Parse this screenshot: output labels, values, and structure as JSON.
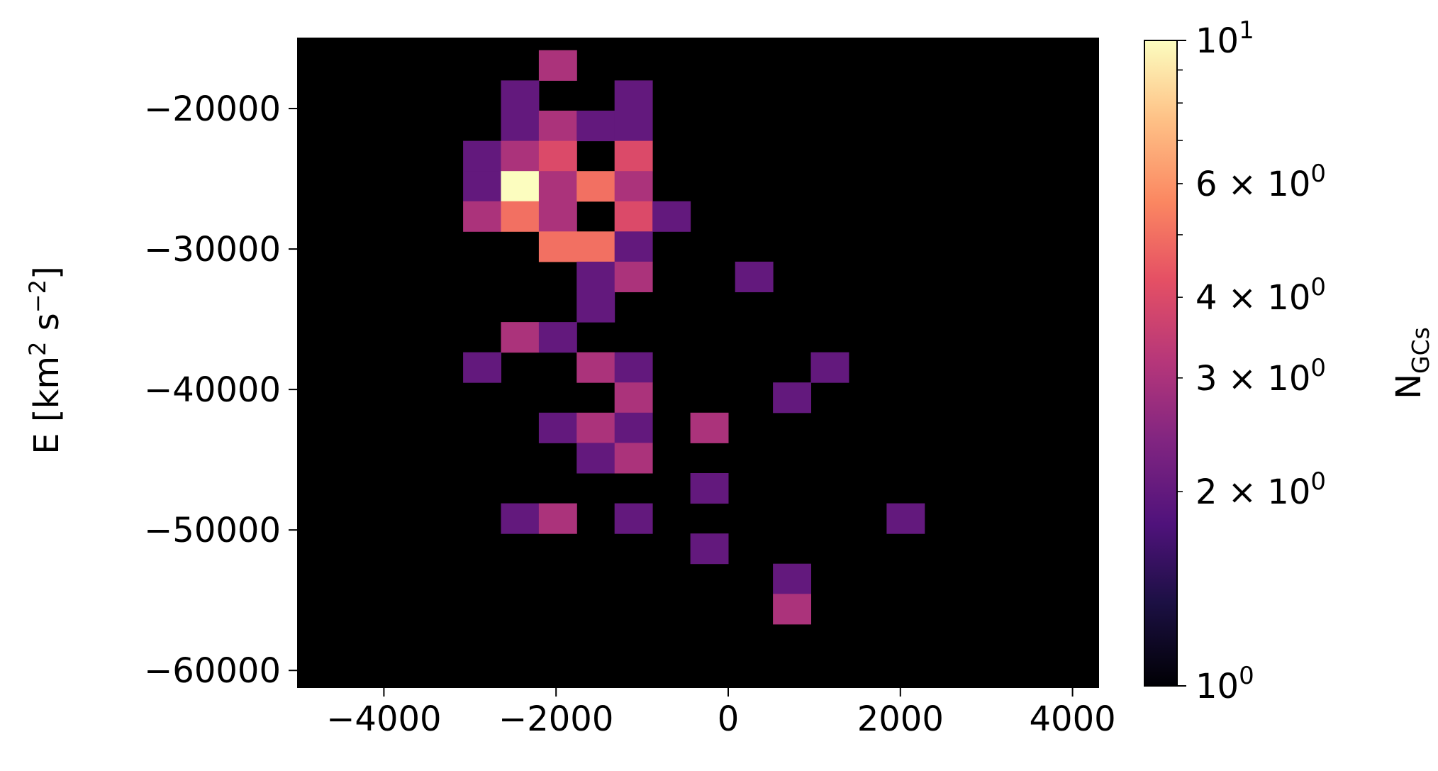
{
  "chart_data": {
    "type": "heatmap",
    "title": "",
    "xlabel": "",
    "ylabel": "E [km² s⁻²]",
    "ylabel_parts": {
      "pre": "E [km",
      "sup1": "2",
      "mid": " s",
      "sup2": "−2",
      "post": "]"
    },
    "xlim": [
      -5000,
      4300
    ],
    "ylim": [
      -61200,
      -15000
    ],
    "xticks": [
      -4000,
      -2000,
      0,
      2000,
      4000
    ],
    "xtick_labels": [
      "−4000",
      "−2000",
      "0",
      "2000",
      "4000"
    ],
    "yticks": [
      -20000,
      -30000,
      -40000,
      -50000,
      -60000
    ],
    "ytick_labels": [
      "−20000",
      "−30000",
      "−40000",
      "−50000",
      "−60000"
    ],
    "bin_width_x": 440,
    "bin_height_y": 2150,
    "colormap": "magma",
    "background": "#000000",
    "colorbar": {
      "label": "N",
      "label_sub": "GCs",
      "scale": "log",
      "range": [
        1,
        10
      ],
      "major_ticks": [
        1,
        10
      ],
      "major_tick_labels": [
        {
          "base": "10",
          "exp": "0"
        },
        {
          "base": "10",
          "exp": "1"
        }
      ],
      "minor_ticks": [
        2,
        3,
        4,
        5,
        6,
        7,
        8,
        9
      ],
      "minor_labeled": [
        2,
        3,
        4,
        6
      ],
      "minor_tick_labels": [
        "2 × 10",
        "3 × 10",
        "4 × 10",
        "6 × 10"
      ],
      "minor_tick_exp": "0"
    },
    "cells": [
      {
        "x": -2200,
        "y": -18000,
        "count": 3
      },
      {
        "x": -2640,
        "y": -20150,
        "count": 2
      },
      {
        "x": -1320,
        "y": -20150,
        "count": 2
      },
      {
        "x": -2640,
        "y": -22300,
        "count": 2
      },
      {
        "x": -2200,
        "y": -22300,
        "count": 3
      },
      {
        "x": -1760,
        "y": -22300,
        "count": 2
      },
      {
        "x": -1320,
        "y": -22300,
        "count": 2
      },
      {
        "x": -3080,
        "y": -24450,
        "count": 2
      },
      {
        "x": -2640,
        "y": -24450,
        "count": 3
      },
      {
        "x": -2200,
        "y": -24450,
        "count": 4
      },
      {
        "x": -1320,
        "y": -24450,
        "count": 4
      },
      {
        "x": -3080,
        "y": -26600,
        "count": 2
      },
      {
        "x": -2640,
        "y": -26600,
        "count": 10
      },
      {
        "x": -2200,
        "y": -26600,
        "count": 3
      },
      {
        "x": -1760,
        "y": -26600,
        "count": 5
      },
      {
        "x": -1320,
        "y": -26600,
        "count": 3
      },
      {
        "x": -3080,
        "y": -28750,
        "count": 3
      },
      {
        "x": -2640,
        "y": -28750,
        "count": 5
      },
      {
        "x": -2200,
        "y": -28750,
        "count": 3
      },
      {
        "x": -1320,
        "y": -28750,
        "count": 4
      },
      {
        "x": -880,
        "y": -28750,
        "count": 2
      },
      {
        "x": -2200,
        "y": -30900,
        "count": 5
      },
      {
        "x": -1760,
        "y": -30900,
        "count": 5
      },
      {
        "x": -1320,
        "y": -30900,
        "count": 2
      },
      {
        "x": -1760,
        "y": -33050,
        "count": 2
      },
      {
        "x": -1320,
        "y": -33050,
        "count": 3
      },
      {
        "x": 80,
        "y": -33050,
        "count": 2
      },
      {
        "x": -1760,
        "y": -35200,
        "count": 2
      },
      {
        "x": -2640,
        "y": -37350,
        "count": 3
      },
      {
        "x": -2200,
        "y": -37350,
        "count": 2
      },
      {
        "x": -3080,
        "y": -39500,
        "count": 2
      },
      {
        "x": -1760,
        "y": -39500,
        "count": 3
      },
      {
        "x": -1320,
        "y": -39500,
        "count": 2
      },
      {
        "x": 960,
        "y": -39500,
        "count": 2
      },
      {
        "x": -1320,
        "y": -41650,
        "count": 3
      },
      {
        "x": 520,
        "y": -41650,
        "count": 2
      },
      {
        "x": -2200,
        "y": -43800,
        "count": 2
      },
      {
        "x": -1760,
        "y": -43800,
        "count": 3
      },
      {
        "x": -1320,
        "y": -43800,
        "count": 2
      },
      {
        "x": -440,
        "y": -43800,
        "count": 3
      },
      {
        "x": -1760,
        "y": -45950,
        "count": 2
      },
      {
        "x": -1320,
        "y": -45950,
        "count": 3
      },
      {
        "x": -440,
        "y": -48100,
        "count": 2
      },
      {
        "x": -2640,
        "y": -50250,
        "count": 2
      },
      {
        "x": -2200,
        "y": -50250,
        "count": 3
      },
      {
        "x": -1320,
        "y": -50250,
        "count": 2
      },
      {
        "x": 1840,
        "y": -50250,
        "count": 2
      },
      {
        "x": -440,
        "y": -52400,
        "count": 2
      },
      {
        "x": 520,
        "y": -54550,
        "count": 2
      },
      {
        "x": 520,
        "y": -56700,
        "count": 3
      }
    ]
  }
}
